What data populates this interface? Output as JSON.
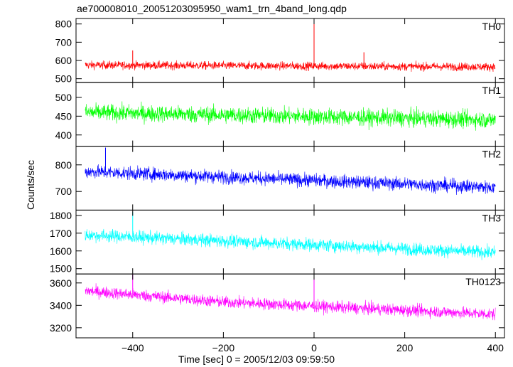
{
  "title": "ae700008010_20051203095950_wam1_trn_4band_long.qdp",
  "xlabel": "Time [sec] 0 = 2005/12/03 09:59:50",
  "ylabel": "Counts/sec",
  "chart_data": {
    "type": "line",
    "title": "ae700008010_20051203095950_wam1_trn_4band_long.qdp",
    "xlabel": "Time [sec] 0 = 2005/12/03 09:59:50",
    "ylabel": "Counts/sec",
    "xlim": [
      -525,
      420
    ],
    "x_ticks": [
      -400,
      -200,
      0,
      200,
      400
    ],
    "x_tick_labels": [
      "−400",
      "−200",
      "0",
      "200",
      "400"
    ],
    "x_range_data": [
      -505,
      400
    ],
    "grid": false,
    "panels": [
      {
        "name": "TH0",
        "color": "#ff0000",
        "ylim": [
          480,
          830
        ],
        "y_ticks": [
          500,
          600,
          700,
          800
        ],
        "y_tick_labels": [
          "500",
          "600",
          "700",
          "800"
        ],
        "trend": [
          {
            "x": -505,
            "y": 575
          },
          {
            "x": 400,
            "y": 565
          }
        ],
        "noise_amplitude": 40,
        "spikes": [
          {
            "x": 0,
            "y": 830
          },
          {
            "x": -400,
            "y": 655
          },
          {
            "x": 110,
            "y": 645
          }
        ]
      },
      {
        "name": "TH1",
        "color": "#00ff00",
        "ylim": [
          370,
          540
        ],
        "y_ticks": [
          400,
          450,
          500
        ],
        "y_tick_labels": [
          "400",
          "450",
          "500"
        ],
        "trend": [
          {
            "x": -505,
            "y": 460
          },
          {
            "x": 400,
            "y": 440
          }
        ],
        "noise_amplitude": 40,
        "spikes": []
      },
      {
        "name": "TH2",
        "color": "#0000ff",
        "ylim": [
          630,
          870
        ],
        "y_ticks": [
          700,
          800
        ],
        "y_tick_labels": [
          "700",
          "800"
        ],
        "trend": [
          {
            "x": -505,
            "y": 775
          },
          {
            "x": 400,
            "y": 715
          }
        ],
        "noise_amplitude": 45,
        "spikes": [
          {
            "x": -460,
            "y": 865
          }
        ]
      },
      {
        "name": "TH3",
        "color": "#00ffff",
        "ylim": [
          1470,
          1830
        ],
        "y_ticks": [
          1500,
          1600,
          1700,
          1800
        ],
        "y_tick_labels": [
          "1500",
          "1600",
          "1700",
          "1800"
        ],
        "trend": [
          {
            "x": -505,
            "y": 1690
          },
          {
            "x": 400,
            "y": 1590
          }
        ],
        "noise_amplitude": 65,
        "spikes": [
          {
            "x": -400,
            "y": 1820
          }
        ]
      },
      {
        "name": "TH0123",
        "color": "#ff00ff",
        "ylim": [
          3110,
          3680
        ],
        "y_ticks": [
          3200,
          3400,
          3600
        ],
        "y_tick_labels": [
          "3200",
          "3400",
          "3600"
        ],
        "trend": [
          {
            "x": -505,
            "y": 3530
          },
          {
            "x": -200,
            "y": 3430
          },
          {
            "x": 400,
            "y": 3320
          }
        ],
        "noise_amplitude": 95,
        "spikes": [
          {
            "x": 0,
            "y": 3640
          },
          {
            "x": -400,
            "y": 3680
          }
        ]
      }
    ]
  }
}
